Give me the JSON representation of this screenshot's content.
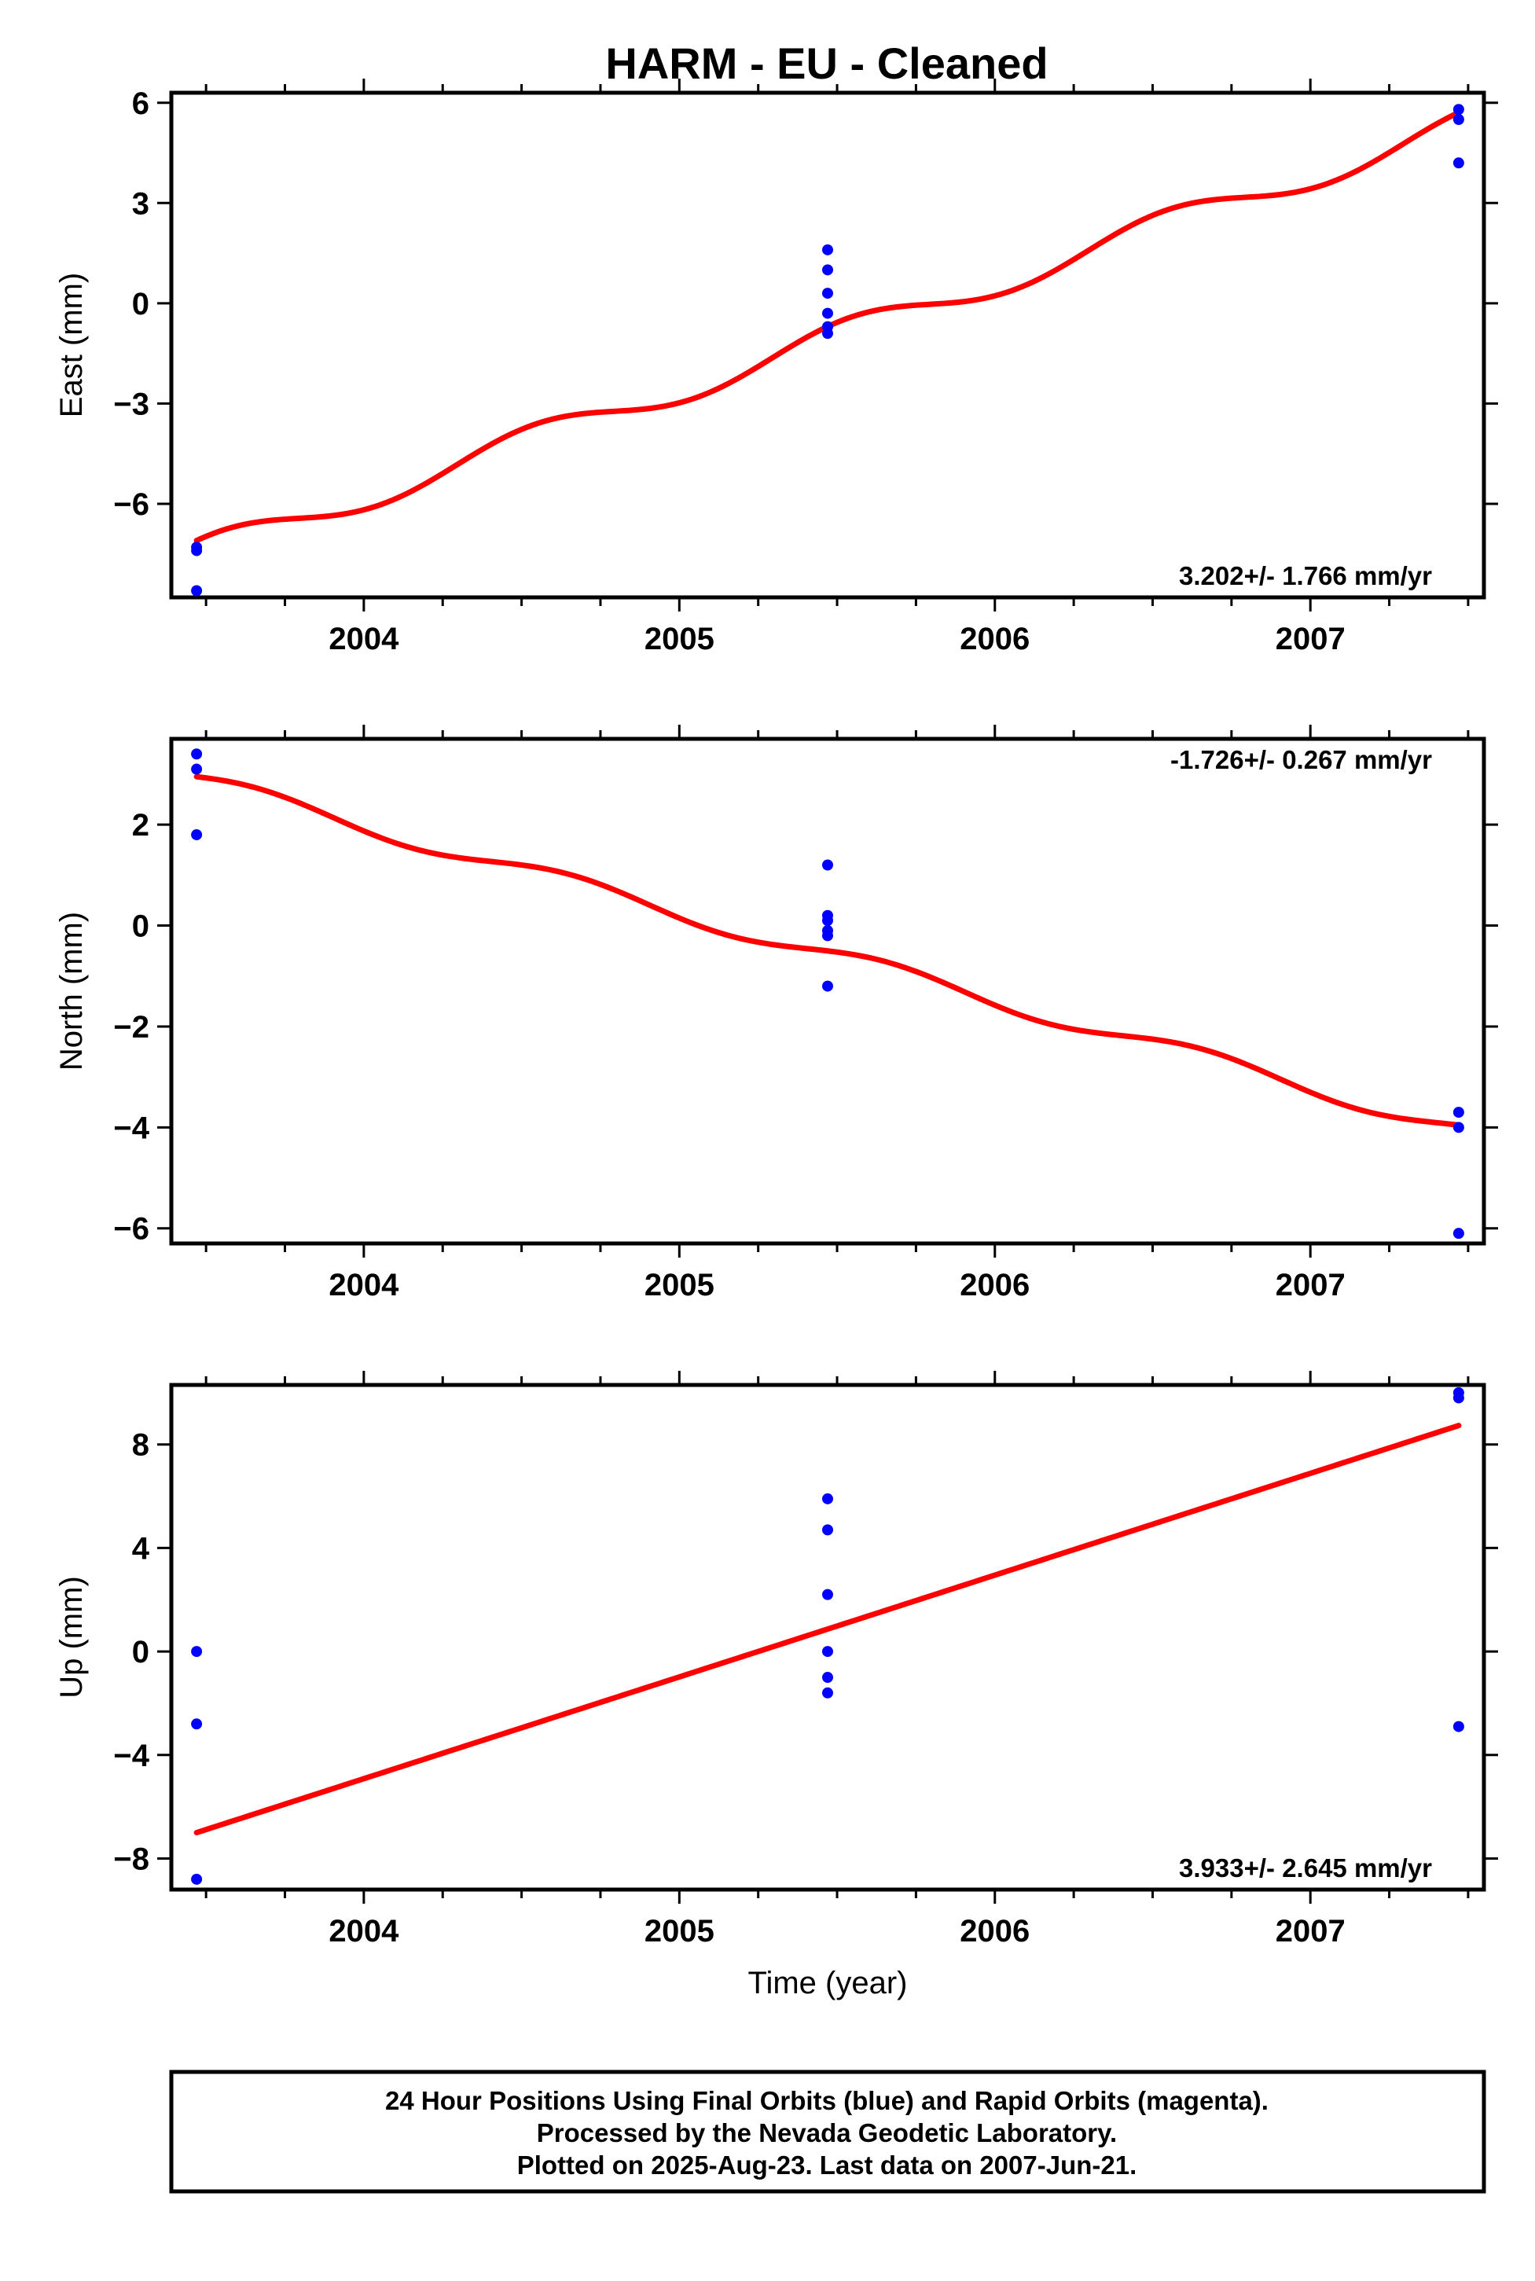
{
  "title": "HARM  - EU - Cleaned",
  "footer": {
    "lines": [
      "24 Hour Positions Using Final Orbits (blue) and Rapid Orbits (magenta).",
      "Processed by the Nevada Geodetic Laboratory.",
      "Plotted on 2025-Aug-23. Last data on 2007-Jun-21."
    ]
  },
  "colors": {
    "final_orbits": "#0000ff",
    "fit_line": "#ff0000",
    "rapid_orbits": "#ff00ff"
  },
  "chart_data": [
    {
      "type": "scatter",
      "title": "",
      "ylabel": "East (mm)",
      "xlabel": "",
      "xlim": [
        2003.39,
        2007.55
      ],
      "ylim": [
        -8.8,
        6.3
      ],
      "xticks": [
        2004,
        2005,
        2006,
        2007
      ],
      "xtick_labels": [
        "2004",
        "2005",
        "2006",
        "2007"
      ],
      "yticks": [
        6,
        3,
        0,
        -3,
        -6
      ],
      "ytick_labels": [
        "6",
        "3",
        "0",
        "−3",
        "−6"
      ],
      "rate_label": "3.202+/- 1.766 mm/yr",
      "rate_position": "bottom-right",
      "points": {
        "x": [
          2003.47,
          2003.47,
          2003.47,
          2005.47,
          2005.47,
          2005.47,
          2005.47,
          2005.47,
          2005.47,
          2007.47,
          2007.47,
          2007.47
        ],
        "y": [
          -7.3,
          -7.4,
          -8.6,
          1.6,
          1.0,
          0.3,
          -0.3,
          -0.7,
          -0.9,
          5.8,
          5.5,
          4.2
        ]
      },
      "fit": {
        "rate": 3.202,
        "anchor_x": 2003.47,
        "anchor_y": -7.1,
        "annual_amp": 0.42,
        "annual_phase": 1.1
      }
    },
    {
      "type": "scatter",
      "title": "",
      "ylabel": "North (mm)",
      "xlabel": "",
      "xlim": [
        2003.39,
        2007.55
      ],
      "ylim": [
        -6.3,
        3.7
      ],
      "xticks": [
        2004,
        2005,
        2006,
        2007
      ],
      "xtick_labels": [
        "2004",
        "2005",
        "2006",
        "2007"
      ],
      "yticks": [
        2,
        0,
        -2,
        -4,
        -6
      ],
      "ytick_labels": [
        "2",
        "0",
        "−2",
        "−4",
        "−6"
      ],
      "rate_label": "-1.726+/- 0.267 mm/yr",
      "rate_position": "top-right",
      "points": {
        "x": [
          2003.47,
          2003.47,
          2003.47,
          2005.47,
          2005.47,
          2005.47,
          2005.47,
          2005.47,
          2005.47,
          2007.47,
          2007.47,
          2007.47
        ],
        "y": [
          3.4,
          3.1,
          1.8,
          1.2,
          0.2,
          0.1,
          -0.1,
          -0.2,
          -1.2,
          -3.7,
          -4.0,
          -6.1
        ]
      },
      "fit": {
        "rate": -1.726,
        "anchor_x": 2003.47,
        "anchor_y": 2.95,
        "annual_amp": 0.17,
        "annual_phase": 0.4
      }
    },
    {
      "type": "scatter",
      "title": "",
      "ylabel": "Up (mm)",
      "xlabel": "Time (year)",
      "xlim": [
        2003.39,
        2007.55
      ],
      "ylim": [
        -9.2,
        10.3
      ],
      "xticks": [
        2004,
        2005,
        2006,
        2007
      ],
      "xtick_labels": [
        "2004",
        "2005",
        "2006",
        "2007"
      ],
      "yticks": [
        8,
        4,
        0,
        -4,
        -8
      ],
      "ytick_labels": [
        "8",
        "4",
        "0",
        "−4",
        "−8"
      ],
      "rate_label": "3.933+/- 2.645 mm/yr",
      "rate_position": "bottom-right",
      "points": {
        "x": [
          2003.47,
          2003.47,
          2003.47,
          2005.47,
          2005.47,
          2005.47,
          2005.47,
          2005.47,
          2005.47,
          2007.47,
          2007.47,
          2007.47
        ],
        "y": [
          0.0,
          -2.8,
          -8.8,
          5.9,
          4.7,
          2.2,
          0.0,
          -1.0,
          -1.6,
          10.0,
          9.8,
          -2.9
        ]
      },
      "fit": {
        "rate": 3.933,
        "anchor_x": 2003.47,
        "anchor_y": -7.0,
        "annual_amp": 0,
        "annual_phase": 0
      }
    }
  ]
}
